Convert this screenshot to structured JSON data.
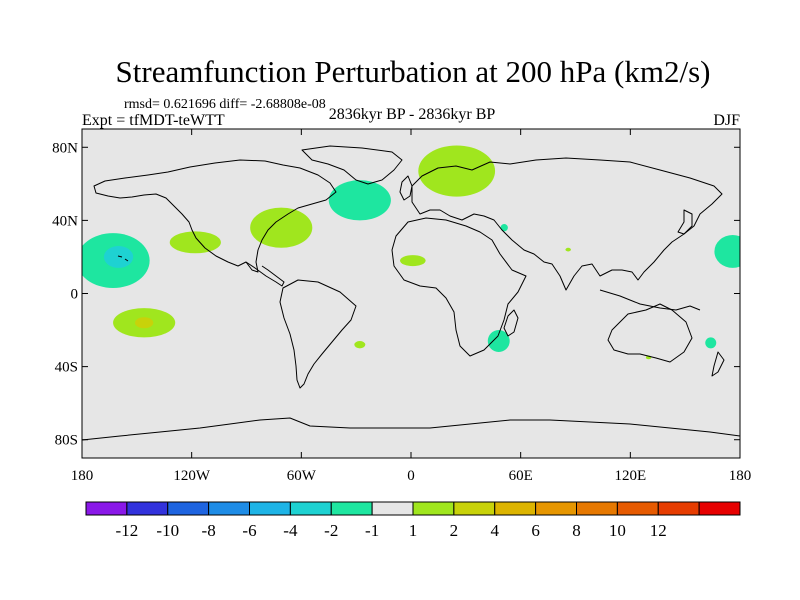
{
  "chart_data": {
    "type": "heatmap",
    "title": "Streamfunction Perturbation at 200 hPa (km2/s)",
    "stats_line": "rmsd= 0.621696 diff= -2.68808e-08",
    "experiment": "Expt = tfMDT-teWTT",
    "period": "2836kyr BP - 2836kyr BP",
    "season": "DJF",
    "x_ticks": [
      {
        "value": -180,
        "label": "180"
      },
      {
        "value": -120,
        "label": "120W"
      },
      {
        "value": -60,
        "label": "60W"
      },
      {
        "value": 0,
        "label": "0"
      },
      {
        "value": 60,
        "label": "60E"
      },
      {
        "value": 120,
        "label": "120E"
      },
      {
        "value": 180,
        "label": "180"
      }
    ],
    "y_ticks": [
      {
        "value": 80,
        "label": "80N"
      },
      {
        "value": 40,
        "label": "40N"
      },
      {
        "value": 0,
        "label": "0"
      },
      {
        "value": -40,
        "label": "40S"
      },
      {
        "value": -80,
        "label": "80S"
      }
    ],
    "xlim": [
      -180,
      180
    ],
    "ylim": [
      -90,
      90
    ],
    "colorbar": {
      "colors": [
        "#8a18e8",
        "#3232dc",
        "#1e64e0",
        "#1e8ce6",
        "#1eb4e6",
        "#1ed2d2",
        "#1ee6a0",
        "#e6e6e6",
        "#a0e61e",
        "#c8d20a",
        "#dcb400",
        "#e69600",
        "#e67800",
        "#e65a00",
        "#e63c00",
        "#e60000"
      ],
      "boundaries": [
        "-12",
        "-10",
        "-8",
        "-6",
        "-4",
        "-2",
        "-1",
        "1",
        "2",
        "4",
        "6",
        "8",
        "10",
        "12"
      ]
    },
    "anomalies": [
      {
        "lon": -163,
        "lat": 18,
        "rlon": 20,
        "rlat": 15,
        "value": -1.5
      },
      {
        "lon": -160,
        "lat": 20,
        "rlon": 8,
        "rlat": 6,
        "value": -2.5
      },
      {
        "lon": -118,
        "lat": 28,
        "rlon": 14,
        "rlat": 6,
        "value": 1.5
      },
      {
        "lon": -71,
        "lat": 36,
        "rlon": 17,
        "rlat": 11,
        "value": 1.5
      },
      {
        "lon": -28,
        "lat": 51,
        "rlon": 17,
        "rlat": 11,
        "value": -1.5
      },
      {
        "lon": 25,
        "lat": 67,
        "rlon": 21,
        "rlat": 14,
        "value": 1.5
      },
      {
        "lon": 1,
        "lat": 18,
        "rlon": 7,
        "rlat": 3,
        "value": 1.5
      },
      {
        "lon": 51,
        "lat": 36,
        "rlon": 2,
        "rlat": 2,
        "value": -1.5
      },
      {
        "lon": 86,
        "lat": 24,
        "rlon": 1.5,
        "rlat": 1,
        "value": 1.5
      },
      {
        "lon": 176,
        "lat": 23,
        "rlon": 10,
        "rlat": 9,
        "value": -1.5
      },
      {
        "lon": -146,
        "lat": -16,
        "rlon": 17,
        "rlat": 8,
        "value": 1.5
      },
      {
        "lon": -146,
        "lat": -16,
        "rlon": 5,
        "rlat": 3,
        "value": 3
      },
      {
        "lon": -28,
        "lat": -28,
        "rlon": 3,
        "rlat": 2,
        "value": 1.5
      },
      {
        "lon": 48,
        "lat": -26,
        "rlon": 6,
        "rlat": 6,
        "value": -1.5
      },
      {
        "lon": 164,
        "lat": -27,
        "rlon": 3,
        "rlat": 3,
        "value": -1.5
      },
      {
        "lon": 130,
        "lat": -35,
        "rlon": 1.5,
        "rlat": 1,
        "value": 1.5
      }
    ]
  }
}
